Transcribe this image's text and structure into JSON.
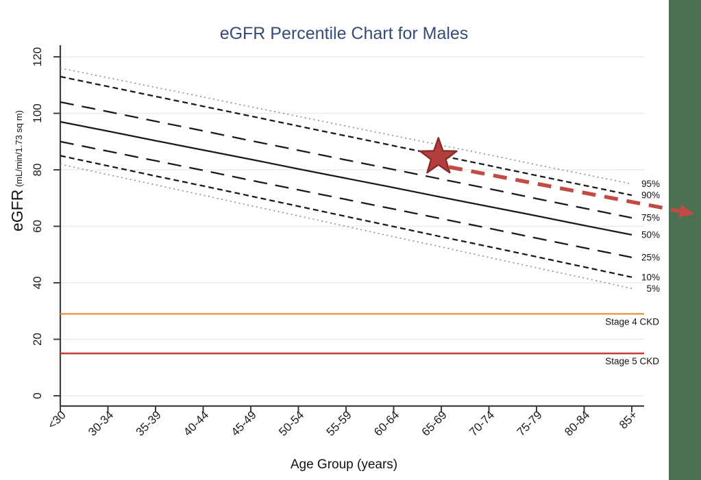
{
  "page": {
    "background_color": "#ffffff",
    "side_band_color": "#4c7052"
  },
  "colors": {
    "title_text": "#374b78",
    "axis": "#3f3f3f",
    "grid": "#e7ebe8",
    "black_line": "#1a1a1a",
    "dotted_line": "#909090"
  },
  "chart_data": {
    "type": "line",
    "title": "eGFR Percentile Chart for Males",
    "xlabel": "Age Group (years)",
    "ylabel": "eGFR",
    "ylabel_sub": " (mL/min/1.73 sq m)",
    "categories": [
      "<30",
      "30-34",
      "35-39",
      "40-44",
      "45-49",
      "50-54",
      "55-59",
      "60-64",
      "65-69",
      "70-74",
      "75-79",
      "80-84",
      "85+"
    ],
    "y_ticks": [
      0,
      20,
      40,
      60,
      80,
      100,
      120
    ],
    "ylim": [
      0,
      120
    ],
    "grid": true,
    "legend_position": "right-edge-of-lines",
    "series": [
      {
        "name": "95%",
        "line_style": "dotted",
        "color": "#909090",
        "values": [
          116,
          112.6,
          109.2,
          105.8,
          102.3,
          98.9,
          95.5,
          92.1,
          88.7,
          85.3,
          81.8,
          78.4,
          75
        ]
      },
      {
        "name": "90%",
        "line_style": "short-dash",
        "color": "#1a1a1a",
        "values": [
          113,
          109.5,
          106,
          102.5,
          99,
          95.5,
          92,
          88.5,
          85,
          81.5,
          78,
          74.5,
          71
        ]
      },
      {
        "name": "75%",
        "line_style": "long-dash",
        "color": "#1a1a1a",
        "values": [
          104,
          100.6,
          97.2,
          93.8,
          90.3,
          86.9,
          83.5,
          80.1,
          76.7,
          73.3,
          69.8,
          66.4,
          63
        ]
      },
      {
        "name": "50%",
        "line_style": "solid",
        "color": "#1a1a1a",
        "values": [
          97,
          93.7,
          90.3,
          87,
          83.7,
          80.3,
          77,
          73.7,
          70.3,
          67,
          63.7,
          60.3,
          57
        ]
      },
      {
        "name": "25%",
        "line_style": "long-dash",
        "color": "#1a1a1a",
        "values": [
          90,
          86.6,
          83.2,
          79.8,
          76.3,
          72.9,
          69.5,
          66.1,
          62.7,
          59.3,
          55.8,
          52.4,
          49
        ]
      },
      {
        "name": "10%",
        "line_style": "short-dash",
        "color": "#1a1a1a",
        "values": [
          85,
          81.4,
          77.8,
          74.3,
          70.7,
          67.1,
          63.5,
          59.9,
          56.3,
          52.8,
          49.2,
          45.6,
          42
        ]
      },
      {
        "name": "5%",
        "line_style": "dotted",
        "color": "#909090",
        "values": [
          82,
          78.3,
          74.7,
          71,
          67.3,
          63.7,
          60,
          56.3,
          52.7,
          49,
          45.3,
          41.7,
          38
        ]
      }
    ],
    "reference_lines": [
      {
        "label": "Stage 4 CKD",
        "value": 29,
        "color": "#e59b40"
      },
      {
        "label": "Stage 5 CKD",
        "value": 15,
        "color": "#bf3a32"
      }
    ],
    "annotations": {
      "star": {
        "category": "65-69",
        "cat_index": 7.94,
        "value": 84.5,
        "fill": "#b23f3d",
        "stroke": "#8c2b29"
      },
      "arrow": {
        "from": {
          "cat_index": 8.16,
          "value": 81.0
        },
        "to": {
          "cat_index": 13.32,
          "value": 64.4
        },
        "color": "#c24b45",
        "style": "dashed",
        "meaning": "projected decline along percentile beyond 85+"
      }
    }
  }
}
